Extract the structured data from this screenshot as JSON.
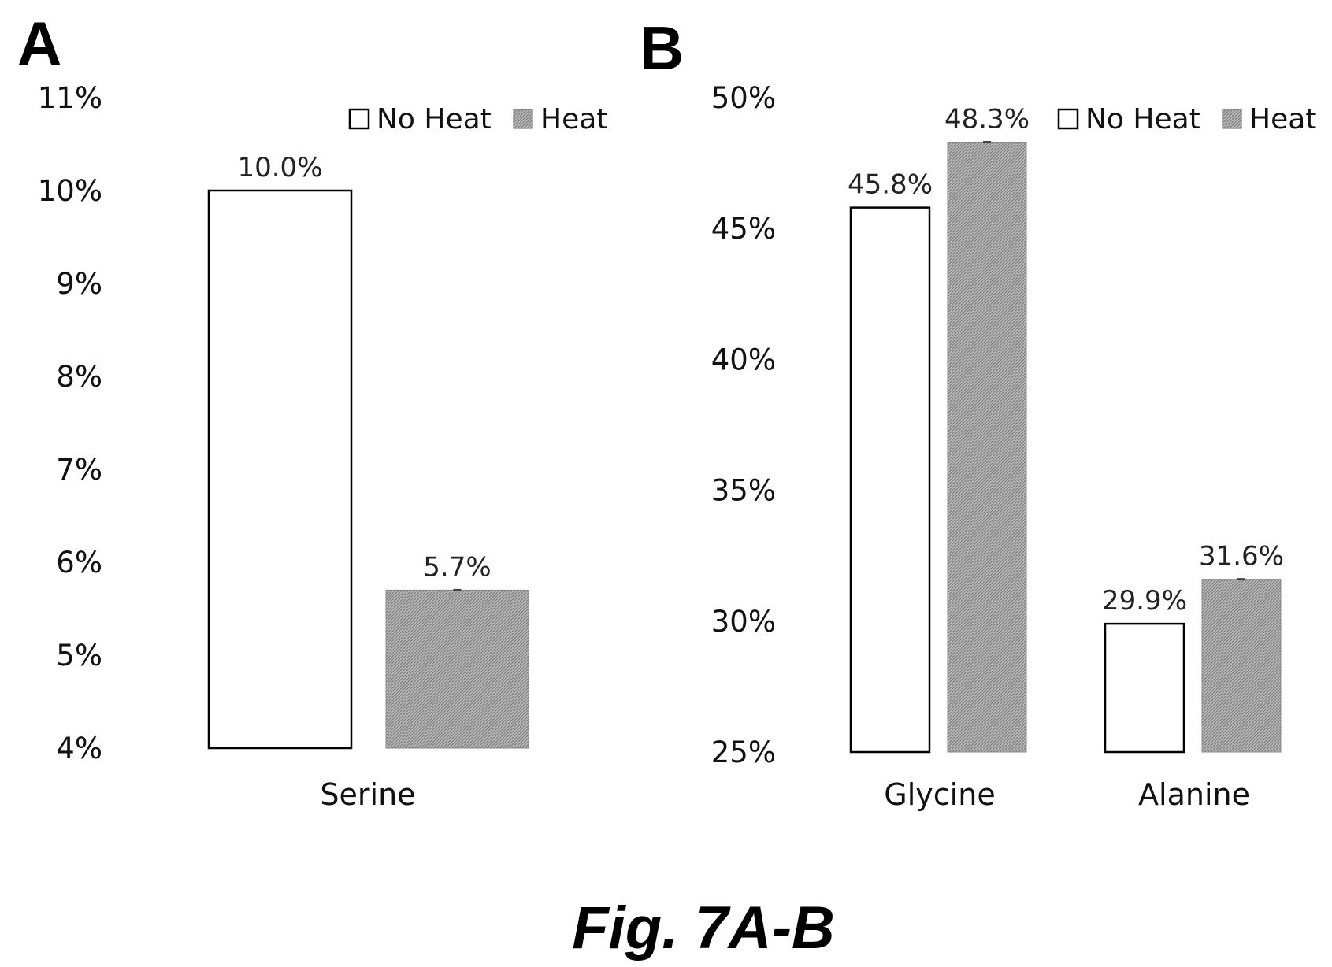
{
  "figure_caption": "Fig. 7A-B",
  "colors": {
    "no_heat": "#ffffff",
    "heat": "#a8a8a8",
    "outline": "#000000"
  },
  "chart_data": [
    {
      "panel": "A",
      "type": "bar",
      "categories": [
        "Serine"
      ],
      "series": [
        {
          "name": "No Heat",
          "values": [
            10.0
          ],
          "labels": [
            "10.0%"
          ]
        },
        {
          "name": "Heat",
          "values": [
            5.7
          ],
          "labels": [
            "5.7%"
          ]
        }
      ],
      "ylim": [
        4,
        11
      ],
      "yticks": [
        "4%",
        "5%",
        "6%",
        "7%",
        "8%",
        "9%",
        "10%",
        "11%"
      ],
      "legend": "top-right",
      "grid": false
    },
    {
      "panel": "B",
      "type": "bar",
      "categories": [
        "Glycine",
        "Alanine"
      ],
      "series": [
        {
          "name": "No Heat",
          "values": [
            45.8,
            29.9
          ],
          "labels": [
            "45.8%",
            "29.9%"
          ]
        },
        {
          "name": "Heat",
          "values": [
            48.3,
            31.6
          ],
          "labels": [
            "48.3%",
            "31.6%"
          ]
        }
      ],
      "ylim": [
        25,
        50
      ],
      "yticks": [
        "25%",
        "30%",
        "35%",
        "40%",
        "45%",
        "50%"
      ],
      "legend": "top-right",
      "grid": false
    }
  ]
}
